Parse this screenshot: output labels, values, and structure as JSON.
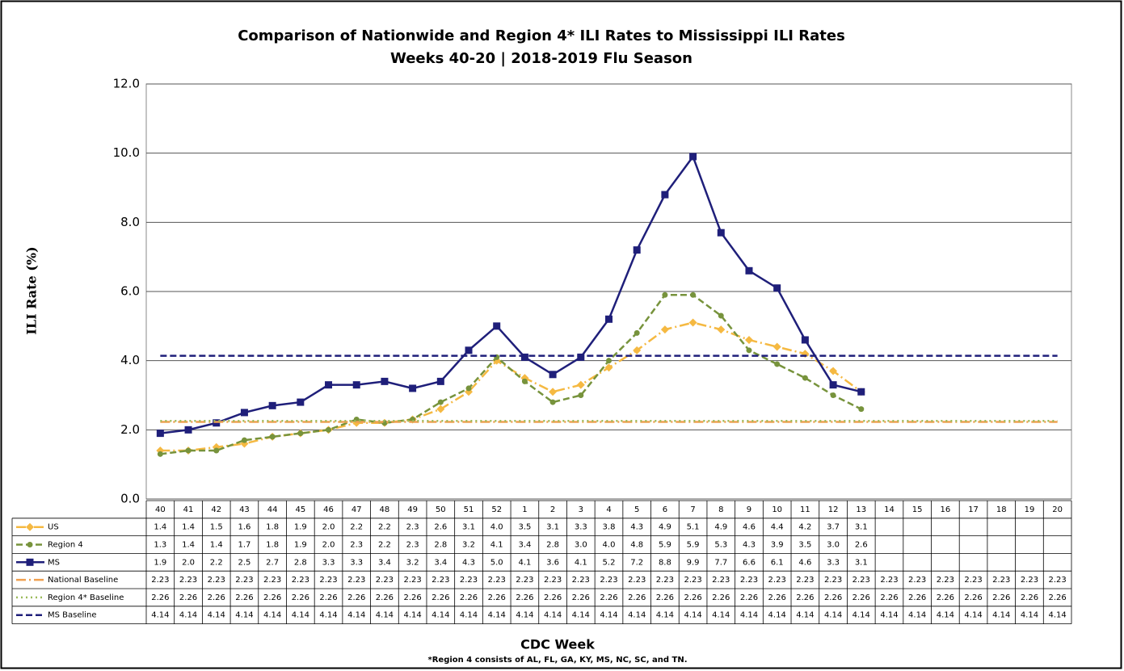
{
  "chart_data": {
    "type": "line",
    "title": "Comparison of Nationwide and Region 4* ILI Rates to Mississippi ILI Rates",
    "subtitle": "Weeks 40-20 | 2018-2019  Flu Season",
    "y_label": "ILI Rate (%)",
    "x_label": "CDC Week",
    "footnote": "*Region 4 consists of AL, FL, GA, KY, MS, NC, SC, and TN.",
    "categories": [
      "40",
      "41",
      "42",
      "43",
      "44",
      "45",
      "46",
      "47",
      "48",
      "49",
      "50",
      "51",
      "52",
      "1",
      "2",
      "3",
      "4",
      "5",
      "6",
      "7",
      "8",
      "9",
      "10",
      "11",
      "12",
      "13",
      "14",
      "15",
      "16",
      "17",
      "18",
      "19",
      "20"
    ],
    "ylim": [
      0,
      12
    ],
    "yticks": [
      {
        "value": 0,
        "label": "0.0"
      },
      {
        "value": 2,
        "label": "2.0"
      },
      {
        "value": 4,
        "label": "4.0"
      },
      {
        "value": 6,
        "label": "6.0"
      },
      {
        "value": 8,
        "label": "8.0"
      },
      {
        "value": 10,
        "label": "10.0"
      },
      {
        "value": 12,
        "label": "12.0"
      }
    ],
    "grid": true,
    "series": [
      {
        "name": "US",
        "color": "#f5b942",
        "dash": "12 4 2 4",
        "marker": "diamond",
        "values": [
          1.4,
          1.4,
          1.5,
          1.6,
          1.8,
          1.9,
          2.0,
          2.2,
          2.2,
          2.3,
          2.6,
          3.1,
          4.0,
          3.5,
          3.1,
          3.3,
          3.8,
          4.3,
          4.9,
          5.1,
          4.9,
          4.6,
          4.4,
          4.2,
          3.7,
          3.1,
          null,
          null,
          null,
          null,
          null,
          null,
          null
        ],
        "value_labels": [
          "1.4",
          "1.4",
          "1.5",
          "1.6",
          "1.8",
          "1.9",
          "2.0",
          "2.2",
          "2.2",
          "2.3",
          "2.6",
          "3.1",
          "4.0",
          "3.5",
          "3.1",
          "3.3",
          "3.8",
          "4.3",
          "4.9",
          "5.1",
          "4.9",
          "4.6",
          "4.4",
          "4.2",
          "3.7",
          "3.1",
          null,
          null,
          null,
          null,
          null,
          null,
          null
        ]
      },
      {
        "name": "Region 4",
        "color": "#77933c",
        "dash": "8 4",
        "marker": "circle",
        "values": [
          1.3,
          1.4,
          1.4,
          1.7,
          1.8,
          1.9,
          2.0,
          2.3,
          2.2,
          2.3,
          2.8,
          3.2,
          4.1,
          3.4,
          2.8,
          3.0,
          4.0,
          4.8,
          5.9,
          5.9,
          5.3,
          4.3,
          3.9,
          3.5,
          3.0,
          2.6,
          null,
          null,
          null,
          null,
          null,
          null,
          null
        ],
        "value_labels": [
          "1.3",
          "1.4",
          "1.4",
          "1.7",
          "1.8",
          "1.9",
          "2.0",
          "2.3",
          "2.2",
          "2.3",
          "2.8",
          "3.2",
          "4.1",
          "3.4",
          "2.8",
          "3.0",
          "4.0",
          "4.8",
          "5.9",
          "5.9",
          "5.3",
          "4.3",
          "3.9",
          "3.5",
          "3.0",
          "2.6",
          null,
          null,
          null,
          null,
          null,
          null,
          null
        ]
      },
      {
        "name": "MS",
        "color": "#1f1f7a",
        "dash": "none",
        "marker": "square",
        "values": [
          1.9,
          2.0,
          2.2,
          2.5,
          2.7,
          2.8,
          3.3,
          3.3,
          3.4,
          3.2,
          3.4,
          4.3,
          5.0,
          4.1,
          3.6,
          4.1,
          5.2,
          7.2,
          8.8,
          9.9,
          7.7,
          6.6,
          6.1,
          4.6,
          3.3,
          3.1,
          null,
          null,
          null,
          null,
          null,
          null,
          null
        ],
        "value_labels": [
          "1.9",
          "2.0",
          "2.2",
          "2.5",
          "2.7",
          "2.8",
          "3.3",
          "3.3",
          "3.4",
          "3.2",
          "3.4",
          "4.3",
          "5.0",
          "4.1",
          "3.6",
          "4.1",
          "5.2",
          "7.2",
          "8.8",
          "9.9",
          "7.7",
          "6.6",
          "6.1",
          "4.6",
          "3.3",
          "3.1",
          null,
          null,
          null,
          null,
          null,
          null,
          null
        ]
      },
      {
        "name": "National Baseline",
        "color": "#f0a050",
        "dash": "12 4 2 4",
        "marker": "none",
        "values": [
          2.23,
          2.23,
          2.23,
          2.23,
          2.23,
          2.23,
          2.23,
          2.23,
          2.23,
          2.23,
          2.23,
          2.23,
          2.23,
          2.23,
          2.23,
          2.23,
          2.23,
          2.23,
          2.23,
          2.23,
          2.23,
          2.23,
          2.23,
          2.23,
          2.23,
          2.23,
          2.23,
          2.23,
          2.23,
          2.23,
          2.23,
          2.23,
          2.23
        ]
      },
      {
        "name": "Region 4* Baseline",
        "color": "#9bbb59",
        "dash": "2 4",
        "marker": "none",
        "values": [
          2.26,
          2.26,
          2.26,
          2.26,
          2.26,
          2.26,
          2.26,
          2.26,
          2.26,
          2.26,
          2.26,
          2.26,
          2.26,
          2.26,
          2.26,
          2.26,
          2.26,
          2.26,
          2.26,
          2.26,
          2.26,
          2.26,
          2.26,
          2.26,
          2.26,
          2.26,
          2.26,
          2.26,
          2.26,
          2.26,
          2.26,
          2.26,
          2.26
        ]
      },
      {
        "name": "MS Baseline",
        "color": "#1f1f7a",
        "dash": "8 4",
        "marker": "none",
        "values": [
          4.14,
          4.14,
          4.14,
          4.14,
          4.14,
          4.14,
          4.14,
          4.14,
          4.14,
          4.14,
          4.14,
          4.14,
          4.14,
          4.14,
          4.14,
          4.14,
          4.14,
          4.14,
          4.14,
          4.14,
          4.14,
          4.14,
          4.14,
          4.14,
          4.14,
          4.14,
          4.14,
          4.14,
          4.14,
          4.14,
          4.14,
          4.14,
          4.14
        ]
      }
    ]
  }
}
